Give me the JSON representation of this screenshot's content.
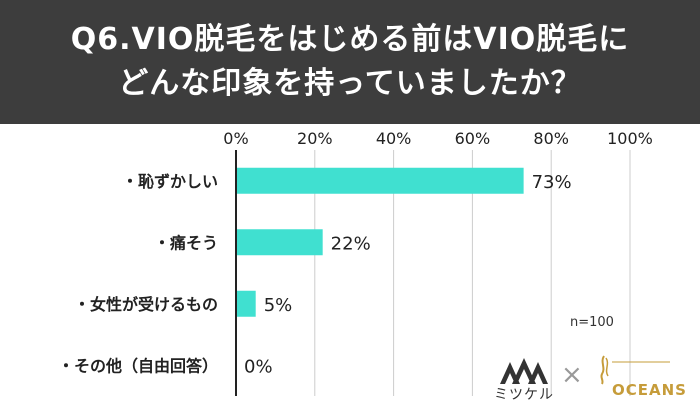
{
  "header": {
    "line1": "Q6.VIO脱毛をはじめる前はVIO脱毛に",
    "line2": "どんな印象を持っていましたか？"
  },
  "note": "n=100",
  "brand": {
    "name": "ミツケル",
    "separator": "×",
    "partner": "OCEANS"
  },
  "colors": {
    "bar": "#40e0d0",
    "header_bg": "#3d3d3d",
    "grid": "#cccccc",
    "axis": "#222222"
  },
  "chart_data": {
    "type": "bar",
    "orientation": "horizontal",
    "categories": [
      "・恥ずかしい",
      "・痛そう",
      "・女性が受けるもの",
      "・その他（自由回答）"
    ],
    "values": [
      73,
      22,
      5,
      0
    ],
    "value_labels": [
      "73%",
      "22%",
      "5%",
      "0%"
    ],
    "xlim": [
      0,
      100
    ],
    "ticks": [
      0,
      20,
      40,
      60,
      80,
      100
    ],
    "tick_labels": [
      "0%",
      "20%",
      "40%",
      "60%",
      "80%",
      "100%"
    ],
    "grid": true,
    "axis_position": "top"
  }
}
